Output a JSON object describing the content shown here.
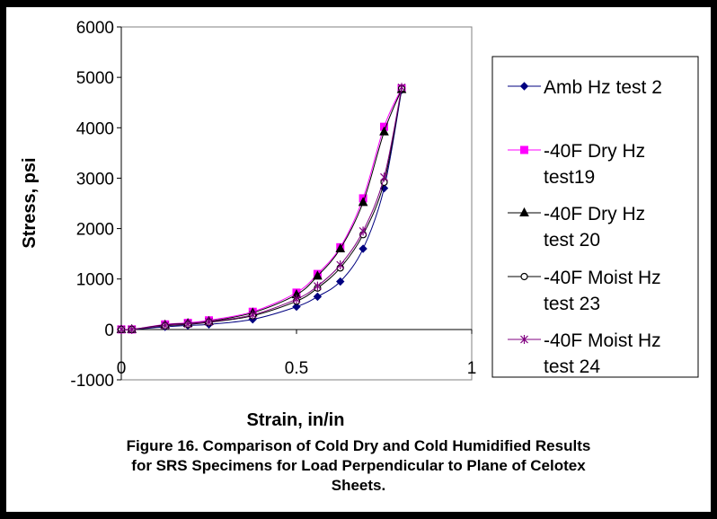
{
  "chart_data": {
    "type": "line",
    "xlabel": "Strain, in/in",
    "ylabel": "Stress, psi",
    "xlim": [
      0,
      1
    ],
    "ylim": [
      -1000,
      6000
    ],
    "xticks": [
      "0",
      "0.5",
      "1"
    ],
    "yticks": [
      "-1000",
      "0",
      "1000",
      "2000",
      "3000",
      "4000",
      "5000",
      "6000"
    ],
    "grid": false,
    "legend_position": "right",
    "caption_lines": [
      "Figure 16.  Comparison of Cold Dry and Cold Humidified Results",
      "for SRS Specimens for Load Perpendicular to Plane of Celotex",
      "Sheets."
    ],
    "series": [
      {
        "name": "Amb Hz test 2",
        "legend_lines": [
          "Amb Hz test 2"
        ],
        "color": "#000080",
        "marker": "diamond",
        "x": [
          0,
          0.03,
          0.125,
          0.19,
          0.25,
          0.375,
          0.5,
          0.56,
          0.625,
          0.69,
          0.75,
          0.8
        ],
        "y": [
          0,
          0,
          50,
          80,
          100,
          200,
          450,
          650,
          950,
          1600,
          2800,
          4750
        ]
      },
      {
        "name": "-40F Dry Hz test19",
        "legend_lines": [
          " -40F Dry Hz",
          "test19"
        ],
        "color": "#FF00FF",
        "marker": "square",
        "x": [
          0,
          0.03,
          0.125,
          0.19,
          0.25,
          0.375,
          0.5,
          0.56,
          0.625,
          0.69,
          0.75,
          0.8
        ],
        "y": [
          0,
          0,
          100,
          130,
          180,
          350,
          730,
          1100,
          1630,
          2600,
          4020,
          4780
        ]
      },
      {
        "name": "-40F Dry Hz test 20",
        "legend_lines": [
          " -40F Dry Hz",
          "test 20"
        ],
        "color": "#000000",
        "marker": "triangle",
        "x": [
          0,
          0.03,
          0.125,
          0.19,
          0.25,
          0.375,
          0.5,
          0.56,
          0.625,
          0.69,
          0.75,
          0.8
        ],
        "y": [
          0,
          0,
          90,
          120,
          160,
          330,
          690,
          1060,
          1600,
          2520,
          3920,
          4760
        ]
      },
      {
        "name": "-40F Moist Hz test 23",
        "legend_lines": [
          " -40F Moist Hz",
          "test 23"
        ],
        "color": "#000000",
        "marker": "circle",
        "x": [
          0,
          0.03,
          0.125,
          0.19,
          0.25,
          0.375,
          0.5,
          0.56,
          0.625,
          0.69,
          0.75,
          0.8
        ],
        "y": [
          0,
          0,
          70,
          100,
          140,
          270,
          560,
          820,
          1220,
          1880,
          2920,
          4780
        ]
      },
      {
        "name": "-40F Moist Hz test 24",
        "legend_lines": [
          " -40F Moist Hz",
          "test 24"
        ],
        "color": "#800080",
        "marker": "star",
        "x": [
          0,
          0.03,
          0.125,
          0.19,
          0.25,
          0.375,
          0.5,
          0.56,
          0.625,
          0.69,
          0.75,
          0.8
        ],
        "y": [
          0,
          0,
          80,
          110,
          150,
          290,
          600,
          860,
          1280,
          1950,
          3020,
          4800
        ]
      }
    ]
  }
}
